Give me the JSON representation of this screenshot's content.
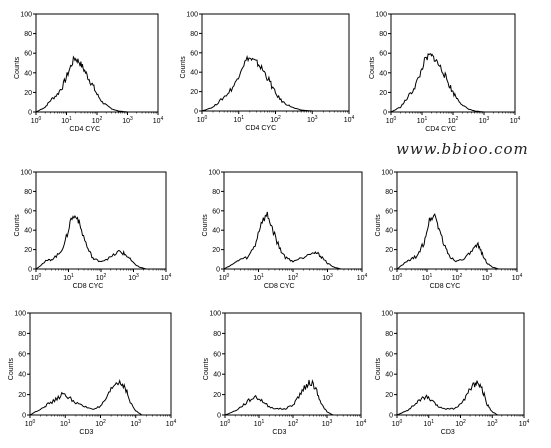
{
  "watermark": "www.bbioo.com",
  "chart_data": [
    {
      "type": "histogram",
      "xlabel": "CD4 CYC",
      "ylabel": "Counts",
      "xscale": "log",
      "xlim": [
        1,
        10000
      ],
      "ylim": [
        0,
        100
      ],
      "yticks": [
        "0",
        "20",
        "40",
        "60",
        "80",
        "100"
      ],
      "xticks": [
        "10^0",
        "10^1",
        "10^2",
        "10^3",
        "10^4"
      ],
      "x": [
        1,
        2,
        3,
        5,
        8,
        12,
        18,
        25,
        35,
        50,
        70,
        100,
        150,
        220,
        320,
        500,
        1000,
        10000
      ],
      "y": [
        0,
        5,
        12,
        18,
        28,
        42,
        55,
        52,
        45,
        36,
        28,
        18,
        10,
        6,
        3,
        1,
        0,
        0
      ]
    },
    {
      "type": "histogram",
      "xlabel": "CD4 CYC",
      "ylabel": "Counts",
      "xscale": "log",
      "xlim": [
        1,
        10000
      ],
      "ylim": [
        0,
        100
      ],
      "yticks": [
        "0",
        "20",
        "40",
        "60",
        "80",
        "100"
      ],
      "xticks": [
        "10^0",
        "10^1",
        "10^2",
        "10^3",
        "10^4"
      ],
      "x": [
        1,
        2,
        3,
        5,
        8,
        12,
        18,
        25,
        35,
        50,
        70,
        100,
        150,
        220,
        320,
        500,
        1000,
        10000
      ],
      "y": [
        0,
        4,
        10,
        18,
        28,
        45,
        55,
        52,
        48,
        40,
        30,
        18,
        10,
        6,
        3,
        1,
        0,
        0
      ]
    },
    {
      "type": "histogram",
      "xlabel": "CD4 CYC",
      "ylabel": "Counts",
      "xscale": "log",
      "xlim": [
        1,
        10000
      ],
      "ylim": [
        0,
        100
      ],
      "yticks": [
        "0",
        "20",
        "40",
        "60",
        "80",
        "100"
      ],
      "xticks": [
        "10^0",
        "10^1",
        "10^2",
        "10^3",
        "10^4"
      ],
      "x": [
        1,
        2,
        3,
        5,
        8,
        12,
        18,
        25,
        35,
        50,
        70,
        100,
        150,
        220,
        320,
        500,
        1000,
        10000
      ],
      "y": [
        0,
        5,
        12,
        22,
        35,
        52,
        58,
        55,
        48,
        40,
        30,
        20,
        12,
        6,
        3,
        1,
        0,
        0
      ]
    },
    {
      "type": "histogram",
      "xlabel": "CD8 CYC",
      "ylabel": "Counts",
      "xscale": "log",
      "xlim": [
        1,
        10000
      ],
      "ylim": [
        0,
        100
      ],
      "yticks": [
        "0",
        "20",
        "40",
        "60",
        "80",
        "100"
      ],
      "xticks": [
        "10^0",
        "10^1",
        "10^2",
        "10^3",
        "10^4"
      ],
      "x": [
        1,
        2,
        3,
        5,
        8,
        12,
        18,
        25,
        40,
        60,
        100,
        200,
        350,
        500,
        700,
        1000,
        1500,
        2500,
        10000
      ],
      "y": [
        0,
        8,
        10,
        15,
        28,
        52,
        55,
        40,
        20,
        10,
        8,
        12,
        18,
        16,
        12,
        6,
        2,
        0,
        0
      ]
    },
    {
      "type": "histogram",
      "xlabel": "CD8 CYC",
      "ylabel": "Counts",
      "xscale": "log",
      "xlim": [
        1,
        10000
      ],
      "ylim": [
        0,
        100
      ],
      "yticks": [
        "0",
        "20",
        "40",
        "60",
        "80",
        "100"
      ],
      "xticks": [
        "10^0",
        "10^1",
        "10^2",
        "10^3",
        "10^4"
      ],
      "x": [
        1,
        2,
        3,
        5,
        8,
        12,
        18,
        25,
        40,
        60,
        100,
        200,
        350,
        500,
        700,
        1000,
        1500,
        2500,
        10000
      ],
      "y": [
        0,
        6,
        10,
        12,
        25,
        48,
        56,
        42,
        22,
        12,
        8,
        12,
        18,
        16,
        12,
        6,
        2,
        0,
        0
      ]
    },
    {
      "type": "histogram",
      "xlabel": "CD8 CYC",
      "ylabel": "Counts",
      "xscale": "log",
      "xlim": [
        1,
        10000
      ],
      "ylim": [
        0,
        100
      ],
      "yticks": [
        "0",
        "20",
        "40",
        "60",
        "80",
        "100"
      ],
      "xticks": [
        "10^0",
        "10^1",
        "10^2",
        "10^3",
        "10^4"
      ],
      "x": [
        1,
        2,
        3,
        5,
        8,
        12,
        18,
        25,
        40,
        60,
        100,
        200,
        350,
        500,
        700,
        1000,
        1500,
        2500,
        10000
      ],
      "y": [
        0,
        7,
        10,
        14,
        28,
        50,
        56,
        42,
        22,
        12,
        8,
        12,
        20,
        24,
        16,
        6,
        2,
        0,
        0
      ]
    },
    {
      "type": "histogram",
      "xlabel": "CD3",
      "ylabel": "Counts",
      "xscale": "log",
      "xlim": [
        1,
        10000
      ],
      "ylim": [
        0,
        100
      ],
      "yticks": [
        "0",
        "20",
        "40",
        "60",
        "80",
        "100"
      ],
      "xticks": [
        "10^0",
        "10^1",
        "10^2",
        "10^3",
        "10^4"
      ],
      "x": [
        1,
        2,
        3,
        5,
        8,
        12,
        20,
        35,
        60,
        100,
        160,
        250,
        350,
        500,
        700,
        1000,
        1500,
        10000
      ],
      "y": [
        0,
        6,
        10,
        14,
        20,
        18,
        12,
        8,
        6,
        8,
        18,
        30,
        32,
        28,
        12,
        4,
        0,
        0
      ]
    },
    {
      "type": "histogram",
      "xlabel": "CD3",
      "ylabel": "Counts",
      "xscale": "log",
      "xlim": [
        1,
        10000
      ],
      "ylim": [
        0,
        100
      ],
      "yticks": [
        "0",
        "20",
        "40",
        "60",
        "80",
        "100"
      ],
      "xticks": [
        "10^0",
        "10^1",
        "10^2",
        "10^3",
        "10^4"
      ],
      "x": [
        1,
        2,
        3,
        5,
        8,
        12,
        20,
        35,
        60,
        100,
        160,
        250,
        350,
        500,
        700,
        1000,
        1500,
        10000
      ],
      "y": [
        0,
        4,
        8,
        14,
        18,
        14,
        8,
        6,
        6,
        10,
        20,
        30,
        32,
        24,
        10,
        3,
        0,
        0
      ]
    },
    {
      "type": "histogram",
      "xlabel": "CD3",
      "ylabel": "Counts",
      "xscale": "log",
      "xlim": [
        1,
        10000
      ],
      "ylim": [
        0,
        100
      ],
      "yticks": [
        "0",
        "20",
        "40",
        "60",
        "80",
        "100"
      ],
      "xticks": [
        "10^0",
        "10^1",
        "10^2",
        "10^3",
        "10^4"
      ],
      "x": [
        1,
        2,
        3,
        5,
        8,
        12,
        20,
        35,
        60,
        100,
        160,
        250,
        350,
        500,
        700,
        1000,
        1500,
        10000
      ],
      "y": [
        0,
        4,
        8,
        14,
        18,
        14,
        8,
        6,
        6,
        10,
        20,
        30,
        32,
        24,
        10,
        3,
        0,
        0
      ]
    }
  ]
}
